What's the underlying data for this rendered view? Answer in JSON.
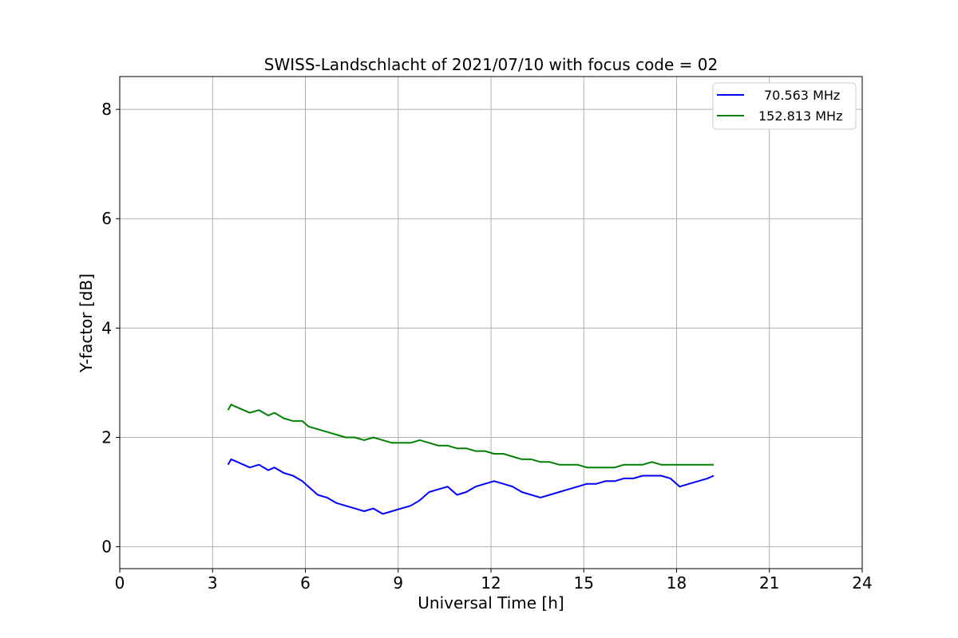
{
  "chart_data": {
    "type": "line",
    "title": "SWISS-Landschlacht of 2021/07/10 with focus code = 02",
    "xlabel": "Universal Time [h]",
    "ylabel": "Y-factor [dB]",
    "xlim": [
      0,
      24
    ],
    "ylim": [
      -0.4,
      8.6
    ],
    "xticks": [
      0,
      3,
      6,
      9,
      12,
      15,
      18,
      21,
      24
    ],
    "xtick_labels": [
      "0",
      "3",
      "6",
      "9",
      "12",
      "15",
      "18",
      "21",
      "24"
    ],
    "yticks": [
      0,
      2,
      4,
      6,
      8
    ],
    "ytick_labels": [
      "0",
      "2",
      "4",
      "6",
      "8"
    ],
    "grid": true,
    "legend_position": "top-right",
    "series": [
      {
        "name": "70.563 MHz",
        "color": "#0000ff",
        "x": [
          3.5,
          3.6,
          3.8,
          4.0,
          4.2,
          4.5,
          4.8,
          5.0,
          5.3,
          5.6,
          5.9,
          6.1,
          6.4,
          6.7,
          7.0,
          7.3,
          7.6,
          7.9,
          8.2,
          8.5,
          8.8,
          9.1,
          9.4,
          9.7,
          10.0,
          10.3,
          10.6,
          10.9,
          11.2,
          11.5,
          11.8,
          12.1,
          12.4,
          12.7,
          13.0,
          13.3,
          13.6,
          13.9,
          14.2,
          14.5,
          14.8,
          15.1,
          15.4,
          15.7,
          16.0,
          16.3,
          16.6,
          16.9,
          17.2,
          17.5,
          17.8,
          18.1,
          18.4,
          18.7,
          19.0,
          19.2
        ],
        "y": [
          1.5,
          1.6,
          1.55,
          1.5,
          1.45,
          1.5,
          1.4,
          1.45,
          1.35,
          1.3,
          1.2,
          1.1,
          0.95,
          0.9,
          0.8,
          0.75,
          0.7,
          0.65,
          0.7,
          0.6,
          0.65,
          0.7,
          0.75,
          0.85,
          1.0,
          1.05,
          1.1,
          0.95,
          1.0,
          1.1,
          1.15,
          1.2,
          1.15,
          1.1,
          1.0,
          0.95,
          0.9,
          0.95,
          1.0,
          1.05,
          1.1,
          1.15,
          1.15,
          1.2,
          1.2,
          1.25,
          1.25,
          1.3,
          1.3,
          1.3,
          1.25,
          1.1,
          1.15,
          1.2,
          1.25,
          1.3
        ]
      },
      {
        "name": "152.813 MHz",
        "color": "#008000",
        "x": [
          3.5,
          3.6,
          3.8,
          4.0,
          4.2,
          4.5,
          4.8,
          5.0,
          5.3,
          5.6,
          5.9,
          6.1,
          6.4,
          6.7,
          7.0,
          7.3,
          7.6,
          7.9,
          8.2,
          8.5,
          8.8,
          9.1,
          9.4,
          9.7,
          10.0,
          10.3,
          10.6,
          10.9,
          11.2,
          11.5,
          11.8,
          12.1,
          12.4,
          12.7,
          13.0,
          13.3,
          13.6,
          13.9,
          14.2,
          14.5,
          14.8,
          15.1,
          15.4,
          15.7,
          16.0,
          16.3,
          16.6,
          16.9,
          17.2,
          17.5,
          17.8,
          18.1,
          18.4,
          18.7,
          19.0,
          19.2
        ],
        "y": [
          2.5,
          2.6,
          2.55,
          2.5,
          2.45,
          2.5,
          2.4,
          2.45,
          2.35,
          2.3,
          2.3,
          2.2,
          2.15,
          2.1,
          2.05,
          2.0,
          2.0,
          1.95,
          2.0,
          1.95,
          1.9,
          1.9,
          1.9,
          1.95,
          1.9,
          1.85,
          1.85,
          1.8,
          1.8,
          1.75,
          1.75,
          1.7,
          1.7,
          1.65,
          1.6,
          1.6,
          1.55,
          1.55,
          1.5,
          1.5,
          1.5,
          1.45,
          1.45,
          1.45,
          1.45,
          1.5,
          1.5,
          1.5,
          1.55,
          1.5,
          1.5,
          1.5,
          1.5,
          1.5,
          1.5,
          1.5
        ]
      }
    ]
  }
}
